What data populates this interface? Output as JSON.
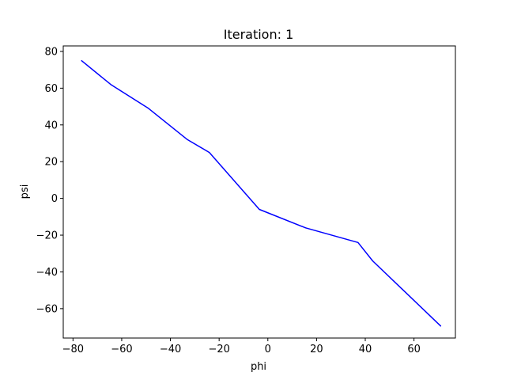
{
  "chart_data": {
    "type": "line",
    "title": "Iteration: 1",
    "xlabel": "phi",
    "ylabel": "psi",
    "xlim": [
      -84,
      77
    ],
    "ylim": [
      -76,
      83
    ],
    "x_ticks": [
      -80,
      -60,
      -40,
      -20,
      0,
      20,
      40,
      60
    ],
    "y_ticks": [
      -60,
      -40,
      -20,
      0,
      20,
      40,
      60,
      80
    ],
    "grid": false,
    "series": [
      {
        "color": "#0000ff",
        "x": [
          -76.5,
          -64.5,
          -49.0,
          -33.0,
          -24.0,
          -3.5,
          15.5,
          37.0,
          43.0,
          71.0
        ],
        "y": [
          75.0,
          62.0,
          49.0,
          32.0,
          25.0,
          -6.0,
          -16.0,
          -24.0,
          -34.0,
          -69.5
        ]
      }
    ]
  }
}
